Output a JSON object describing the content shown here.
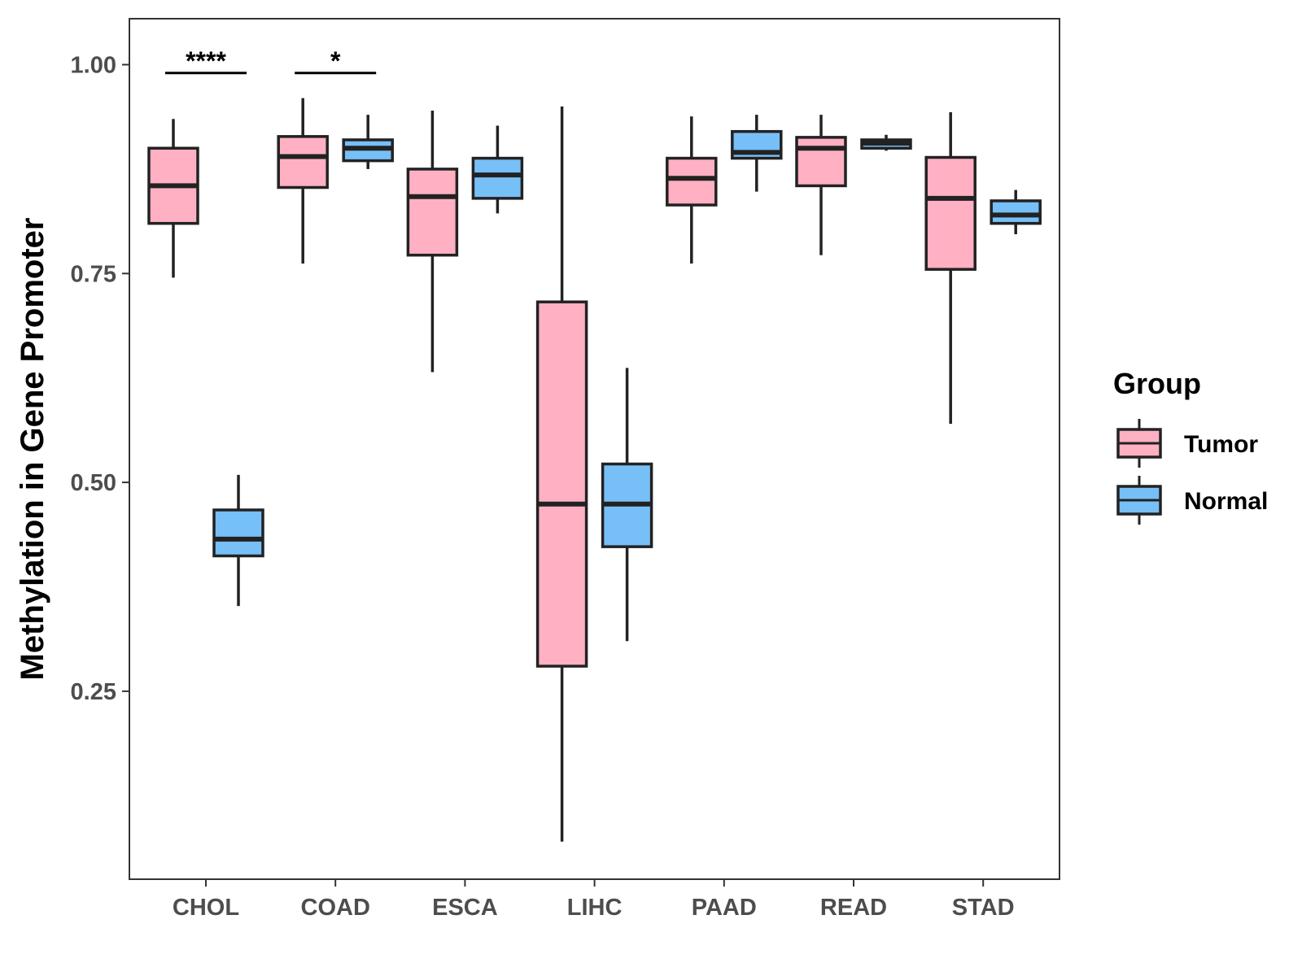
{
  "chart_data": {
    "type": "boxplot",
    "title": "",
    "xlabel": "",
    "ylabel": "Methylation in Gene Promoter",
    "ylim": [
      0.025,
      1.055
    ],
    "yticks": [
      0.25,
      0.5,
      0.75,
      1.0
    ],
    "ytick_labels": [
      "0.25",
      "0.50",
      "0.75",
      "1.00"
    ],
    "categories": [
      "CHOL",
      "COAD",
      "ESCA",
      "LIHC",
      "PAAD",
      "READ",
      "STAD"
    ],
    "grid": false,
    "legend": {
      "title": "Group",
      "position": "right",
      "entries": [
        {
          "name": "Tumor",
          "color": "#FFB0C3"
        },
        {
          "name": "Normal",
          "color": "#77BFF7"
        }
      ]
    },
    "series": [
      {
        "name": "Tumor",
        "color": "#FFB0C3",
        "boxes": [
          {
            "min": 0.745,
            "q1": 0.81,
            "median": 0.855,
            "q3": 0.9,
            "max": 0.935
          },
          {
            "min": 0.762,
            "q1": 0.853,
            "median": 0.89,
            "q3": 0.914,
            "max": 0.96
          },
          {
            "min": 0.632,
            "q1": 0.772,
            "median": 0.842,
            "q3": 0.875,
            "max": 0.945
          },
          {
            "min": 0.07,
            "q1": 0.28,
            "median": 0.474,
            "q3": 0.716,
            "max": 0.95
          },
          {
            "min": 0.762,
            "q1": 0.832,
            "median": 0.864,
            "q3": 0.888,
            "max": 0.938
          },
          {
            "min": 0.772,
            "q1": 0.855,
            "median": 0.9,
            "q3": 0.913,
            "max": 0.94
          },
          {
            "min": 0.57,
            "q1": 0.755,
            "median": 0.84,
            "q3": 0.889,
            "max": 0.943
          }
        ]
      },
      {
        "name": "Normal",
        "color": "#77BFF7",
        "boxes": [
          {
            "min": 0.352,
            "q1": 0.412,
            "median": 0.432,
            "q3": 0.467,
            "max": 0.509
          },
          {
            "min": 0.875,
            "q1": 0.885,
            "median": 0.9,
            "q3": 0.91,
            "max": 0.94
          },
          {
            "min": 0.822,
            "q1": 0.84,
            "median": 0.868,
            "q3": 0.888,
            "max": 0.927
          },
          {
            "min": 0.31,
            "q1": 0.423,
            "median": 0.474,
            "q3": 0.522,
            "max": 0.637
          },
          {
            "min": 0.848,
            "q1": 0.888,
            "median": 0.895,
            "q3": 0.92,
            "max": 0.94
          },
          {
            "min": 0.897,
            "q1": 0.9,
            "median": 0.906,
            "q3": 0.91,
            "max": 0.916
          },
          {
            "min": 0.797,
            "q1": 0.81,
            "median": 0.82,
            "q3": 0.837,
            "max": 0.85
          }
        ]
      }
    ],
    "annotations": [
      {
        "category": "CHOL",
        "label": "****",
        "y": 0.99
      },
      {
        "category": "COAD",
        "label": "*",
        "y": 0.99
      }
    ]
  }
}
